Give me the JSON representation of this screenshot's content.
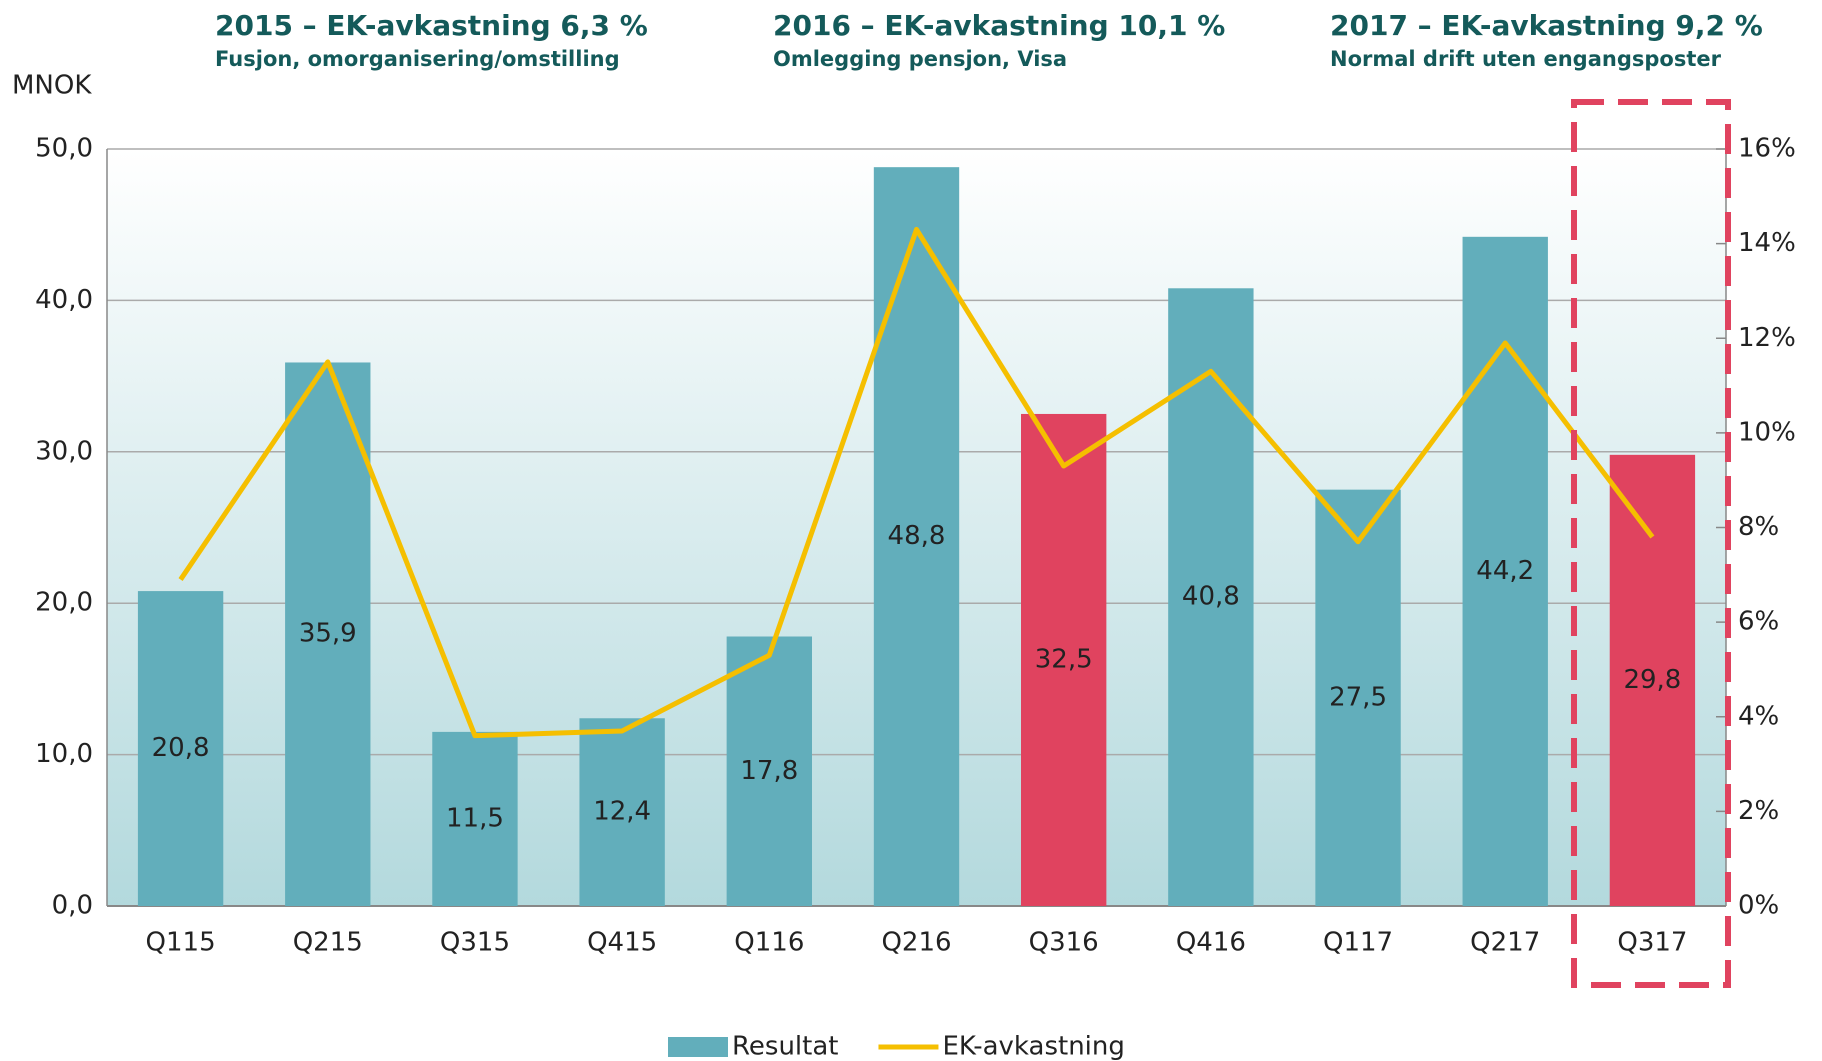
{
  "chart_data": {
    "type": "bar",
    "annotations": [
      {
        "title": "2015 – EK-avkastning 6,3 %",
        "subtitle": "Fusjon, omorganisering/omstilling"
      },
      {
        "title": "2016 – EK-avkastning 10,1 %",
        "subtitle": "Omlegging pensjon, Visa"
      },
      {
        "title": "2017 – EK-avkastning 9,2 %",
        "subtitle": "Normal drift uten engangsposter"
      }
    ],
    "y_label": "MNOK",
    "categories": [
      "Q115",
      "Q215",
      "Q315",
      "Q415",
      "Q116",
      "Q216",
      "Q316",
      "Q416",
      "Q117",
      "Q217",
      "Q317"
    ],
    "series": [
      {
        "name": "Resultat",
        "color": "#62aebb",
        "colors": [
          "#62aebb",
          "#62aebb",
          "#62aebb",
          "#62aebb",
          "#62aebb",
          "#62aebb",
          "#e0435f",
          "#62aebb",
          "#62aebb",
          "#62aebb",
          "#e0435f"
        ],
        "values": [
          20.8,
          35.9,
          11.5,
          12.4,
          17.8,
          48.8,
          32.5,
          40.8,
          27.5,
          44.2,
          29.8
        ],
        "value_labels": [
          "20,8",
          "35,9",
          "11,5",
          "12,4",
          "17,8",
          "48,8",
          "32,5",
          "40,8",
          "27,5",
          "44,2",
          "29,8"
        ]
      },
      {
        "name": "EK-avkastning",
        "type": "line",
        "axis": "y2",
        "color": "#f5bf00",
        "values": [
          6.9,
          11.5,
          3.6,
          3.7,
          5.3,
          14.3,
          9.3,
          11.3,
          7.7,
          11.9,
          7.8
        ]
      }
    ],
    "ylim": [
      0,
      50
    ],
    "yticks": [
      {
        "value": 0,
        "label": "0,0"
      },
      {
        "value": 10,
        "label": "10,0"
      },
      {
        "value": 20,
        "label": "20,0"
      },
      {
        "value": 30,
        "label": "30,0"
      },
      {
        "value": 40,
        "label": "40,0"
      },
      {
        "value": 50,
        "label": "50,0"
      }
    ],
    "y2lim": [
      0,
      16
    ],
    "y2ticks": [
      {
        "value": 0,
        "label": "0%"
      },
      {
        "value": 2,
        "label": "2%"
      },
      {
        "value": 4,
        "label": "4%"
      },
      {
        "value": 6,
        "label": "6%"
      },
      {
        "value": 8,
        "label": "8%"
      },
      {
        "value": 10,
        "label": "10%"
      },
      {
        "value": 12,
        "label": "12%"
      },
      {
        "value": 14,
        "label": "14%"
      },
      {
        "value": 16,
        "label": "16%"
      }
    ],
    "grid": true
  }
}
